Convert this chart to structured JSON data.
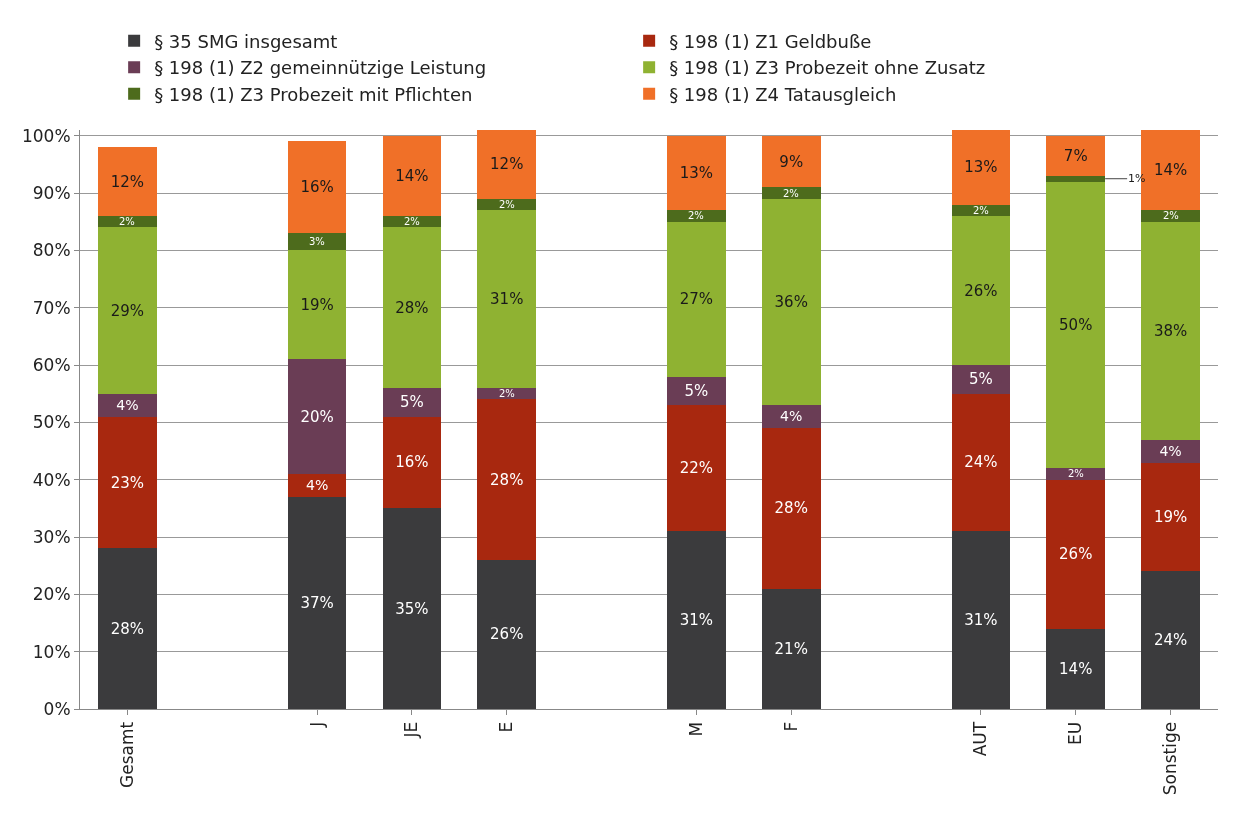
{
  "chart_data": {
    "type": "bar",
    "stacked": true,
    "categories": [
      "Gesamt",
      null,
      "J",
      "JE",
      "E",
      null,
      "M",
      "F",
      null,
      "AUT",
      "EU",
      "Sonstige"
    ],
    "series": [
      {
        "name": "§ 35 SMG insgesamt",
        "color": "#3b3b3d",
        "values": [
          28,
          null,
          37,
          35,
          26,
          null,
          31,
          21,
          null,
          31,
          14,
          24
        ],
        "value_labels": [
          "28%",
          null,
          "37%",
          "35%",
          "26%",
          null,
          "31%",
          "21%",
          null,
          "31%",
          "14%",
          "24%"
        ]
      },
      {
        "name": "§ 198 (1) Z1 Geldbuße",
        "color": "#a8280f",
        "values": [
          23,
          null,
          4,
          16,
          28,
          null,
          22,
          28,
          null,
          24,
          26,
          19
        ],
        "value_labels": [
          "23%",
          null,
          "4%",
          "16%",
          "28%",
          null,
          "22%",
          "28%",
          null,
          "24%",
          "26%",
          "19%"
        ]
      },
      {
        "name": "§ 198 (1) Z2 gemeinnützige Leistung",
        "color": "#6a3d55",
        "values": [
          4,
          null,
          20,
          5,
          2,
          null,
          5,
          4,
          null,
          5,
          2,
          4
        ],
        "value_labels": [
          "4%",
          null,
          "20%",
          "5%",
          "2%",
          null,
          "5%",
          "4%",
          null,
          "5%",
          "2%",
          "4%"
        ]
      },
      {
        "name": "§ 198 (1) Z3 Probezeit ohne Zusatz",
        "color": "#8fb232",
        "values": [
          29,
          null,
          19,
          28,
          31,
          null,
          27,
          36,
          null,
          26,
          50,
          38
        ],
        "value_labels": [
          "29%",
          null,
          "19%",
          "28%",
          "31%",
          null,
          "27%",
          "36%",
          null,
          "26%",
          "50%",
          "38%"
        ]
      },
      {
        "name": "§ 198 (1) Z3 Probezeit mit Pflichten",
        "color": "#4d6b1c",
        "values": [
          2,
          null,
          3,
          2,
          2,
          null,
          2,
          2,
          null,
          2,
          1,
          2
        ],
        "value_labels": [
          "2%",
          null,
          "3%",
          "2%",
          "2%",
          null,
          "2%",
          "2%",
          null,
          "2%",
          "1%",
          "2%"
        ]
      },
      {
        "name": "§ 198 (1) Z4 Tatausgleich",
        "color": "#f07028",
        "values": [
          12,
          null,
          16,
          14,
          12,
          null,
          13,
          9,
          null,
          13,
          7,
          14
        ],
        "value_labels": [
          "12%",
          null,
          "16%",
          "14%",
          "12%",
          null,
          "13%",
          "9%",
          null,
          "13%",
          "7%",
          "14%"
        ]
      }
    ],
    "ylim": [
      0,
      101
    ],
    "yticks": [
      {
        "value": 0,
        "label": "0%"
      },
      {
        "value": 10,
        "label": "10%"
      },
      {
        "value": 20,
        "label": "20%"
      },
      {
        "value": 30,
        "label": "30%"
      },
      {
        "value": 40,
        "label": "40%"
      },
      {
        "value": 50,
        "label": "50%"
      },
      {
        "value": 60,
        "label": "60%"
      },
      {
        "value": 70,
        "label": "70%"
      },
      {
        "value": 80,
        "label": "80%"
      },
      {
        "value": 90,
        "label": "90%"
      },
      {
        "value": 100,
        "label": "100%"
      }
    ],
    "grid": "y",
    "legend": "top"
  }
}
